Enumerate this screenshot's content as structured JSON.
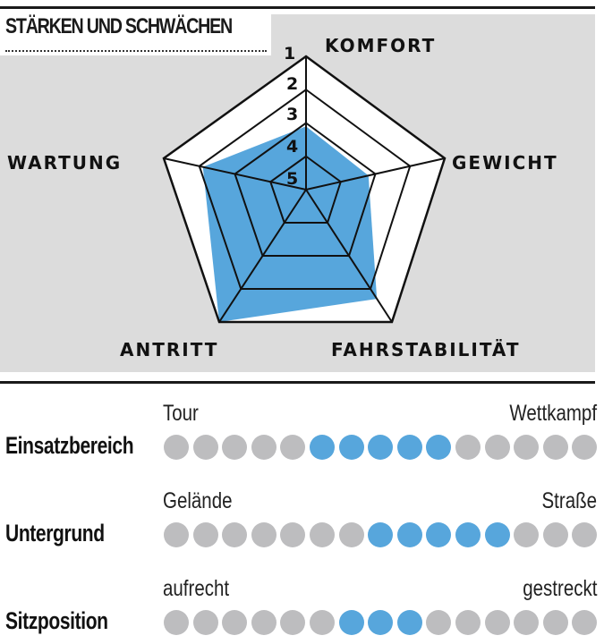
{
  "title": "STÄRKEN UND SCHWÄCHEN",
  "chart_data": {
    "type": "radar",
    "title": "STÄRKEN UND SCHWÄCHEN",
    "axes": [
      "KOMFORT",
      "GEWICHT",
      "FAHRSTABILITÄT",
      "ANTRITT",
      "WARTUNG"
    ],
    "scale_labels": [
      "1",
      "2",
      "3",
      "4",
      "5"
    ],
    "scale_range": [
      1,
      5
    ],
    "scale_note_best_is": 1,
    "values": [
      3.1,
      3.2,
      1.7,
      1.0,
      2.1
    ],
    "fill_color": "#57a6dc"
  },
  "ratings": [
    {
      "label": "Einsatzbereich",
      "left": "Tour",
      "right": "Wettkampf",
      "total": 15,
      "active": [
        6,
        7,
        8,
        9,
        10
      ]
    },
    {
      "label": "Untergrund",
      "left": "Gelände",
      "right": "Straße",
      "total": 15,
      "active": [
        8,
        9,
        10,
        11,
        12
      ]
    },
    {
      "label": "Sitzposition",
      "left": "aufrecht",
      "right": "gestreckt",
      "total": 15,
      "active": [
        7,
        8,
        9
      ]
    }
  ],
  "colors": {
    "active_dot": "#57a6dc",
    "inactive_dot": "#bdbdbf",
    "panel": "#dcdcdc"
  }
}
